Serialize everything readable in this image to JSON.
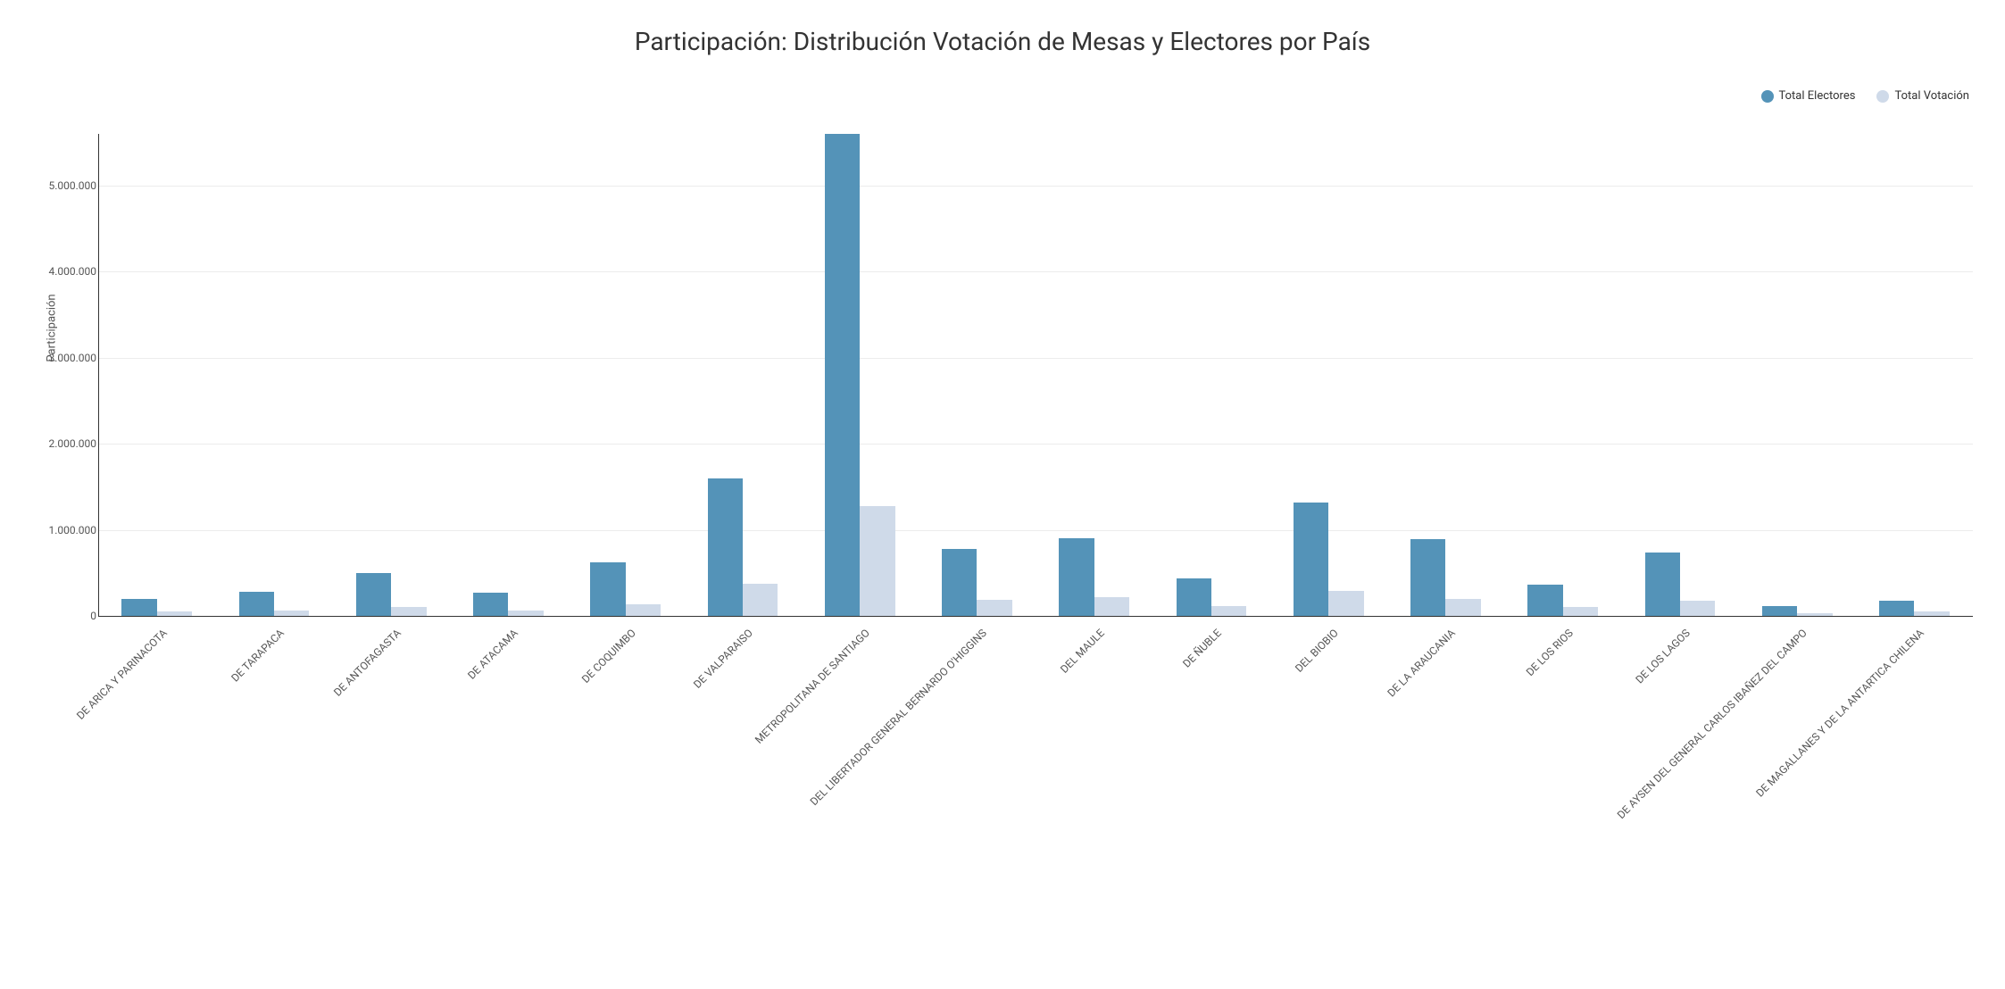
{
  "chart": {
    "type": "bar",
    "title": "Participación: Distribución Votación de Mesas y Electores por País",
    "title_fontsize": 28,
    "title_color": "#333333",
    "ylabel": "Participación",
    "ylabel_fontsize": 13,
    "background_color": "#ffffff",
    "grid_color": "#ececec",
    "axis_color": "#333333",
    "tick_fontsize": 12,
    "xtick_fontsize": 12,
    "ylim": [
      0,
      5600000
    ],
    "yticks": [
      0,
      1000000,
      2000000,
      3000000,
      4000000,
      5000000
    ],
    "ytick_labels": [
      "0",
      "1.000.000",
      "2.000.000",
      "3.000.000",
      "4.000.000",
      "5.000.000"
    ],
    "categories": [
      "DE ARICA Y PARINACOTA",
      "DE TARAPACA",
      "DE ANTOFAGASTA",
      "DE ATACAMA",
      "DE COQUIMBO",
      "DE VALPARAISO",
      "METROPOLITANA DE SANTIAGO",
      "DEL LIBERTADOR GENERAL BERNARDO O'HIGGINS",
      "DEL MAULE",
      "DE ÑUBLE",
      "DEL BIOBIO",
      "DE LA ARAUCANIA",
      "DE LOS RIOS",
      "DE LOS LAGOS",
      "DE AYSEN DEL GENERAL CARLOS IBAÑEZ DEL CAMPO",
      "DE MAGALLANES Y DE LA ANTARTICA CHILENA"
    ],
    "series": [
      {
        "name": "Total Electores",
        "color": "#5493b8",
        "values": [
          200000,
          280000,
          500000,
          270000,
          620000,
          1600000,
          5600000,
          780000,
          900000,
          440000,
          1320000,
          890000,
          360000,
          740000,
          110000,
          180000
        ]
      },
      {
        "name": "Total Votación",
        "color": "#cfdae9",
        "values": [
          50000,
          60000,
          100000,
          60000,
          140000,
          370000,
          1280000,
          190000,
          220000,
          110000,
          290000,
          200000,
          100000,
          180000,
          30000,
          55000
        ]
      }
    ],
    "legend": {
      "position": "top-right",
      "fontsize": 13,
      "swatch_shape": "circle"
    },
    "bar_group_width": 0.6,
    "bar_gap_ratio": 0.0
  }
}
